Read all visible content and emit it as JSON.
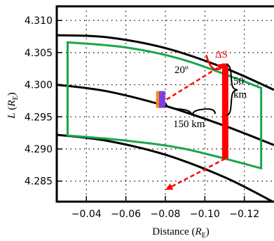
{
  "chart_data": {
    "type": "line",
    "xlabel_main": "Distance (",
    "xlabel_italic": "R",
    "xlabel_sub": "E",
    "xlabel_end": ")",
    "ylabel_italic_L": "L",
    "ylabel_open": " (",
    "ylabel_italic_R": "R",
    "ylabel_sub": "E",
    "ylabel_close": ")",
    "xlim": [
      -0.025,
      -0.135
    ],
    "ylim": [
      4.2818,
      4.3122
    ],
    "x_ticks": [
      -0.04,
      -0.06,
      -0.08,
      -0.1,
      -0.12
    ],
    "x_tick_labels": [
      "−0.04",
      "−0.06",
      "−0.08",
      "−0.10",
      "−0.12"
    ],
    "y_ticks": [
      4.285,
      4.29,
      4.295,
      4.3,
      4.305,
      4.31
    ],
    "y_tick_labels": [
      "4.285",
      "4.290",
      "4.295",
      "4.300",
      "4.305",
      "4.310"
    ],
    "grid": true,
    "field_lines": [
      {
        "points": [
          [
            -0.025,
            4.3077
          ],
          [
            -0.05,
            4.3074
          ],
          [
            -0.08,
            4.3057
          ],
          [
            -0.11,
            4.3026
          ],
          [
            -0.135,
            4.2992
          ]
        ]
      },
      {
        "points": [
          [
            -0.025,
            4.3
          ],
          [
            -0.05,
            4.299
          ],
          [
            -0.08,
            4.2967
          ],
          [
            -0.11,
            4.2936
          ],
          [
            -0.135,
            4.2906
          ]
        ]
      },
      {
        "points": [
          [
            -0.025,
            4.2922
          ],
          [
            -0.05,
            4.2913
          ],
          [
            -0.08,
            4.2891
          ],
          [
            -0.11,
            4.2856
          ],
          [
            -0.135,
            4.2817
          ]
        ]
      }
    ],
    "box": {
      "color": "#1aa64a",
      "points": [
        [
          -0.0305,
          4.3066
        ],
        [
          -0.06,
          4.3058
        ],
        [
          -0.09,
          4.3038
        ],
        [
          -0.1285,
          4.2995
        ],
        [
          -0.1285,
          4.287
        ],
        [
          -0.09,
          4.29
        ],
        [
          -0.06,
          4.2913
        ],
        [
          -0.0305,
          4.2921
        ]
      ]
    },
    "deltaS_bar": {
      "color": "#ff0000",
      "x": -0.1103,
      "y_top": 4.3033,
      "y_bottom": 4.2885
    },
    "spacecraft": {
      "x": -0.0785,
      "y": 4.2977,
      "color_body": "#7b3fe4",
      "color_edge": "#ff8c00"
    },
    "arrows": {
      "color": "#ff0000",
      "line1": [
        [
          -0.0785,
          4.2977
        ],
        [
          -0.1103,
          4.3033
        ]
      ],
      "line2": [
        [
          -0.1103,
          4.2885
        ],
        [
          -0.081,
          4.2838
        ]
      ]
    },
    "annotations": {
      "deltaS": "ΔS",
      "angle": "20º",
      "height_value": "50",
      "height_unit": "km",
      "length": "150 km"
    }
  }
}
